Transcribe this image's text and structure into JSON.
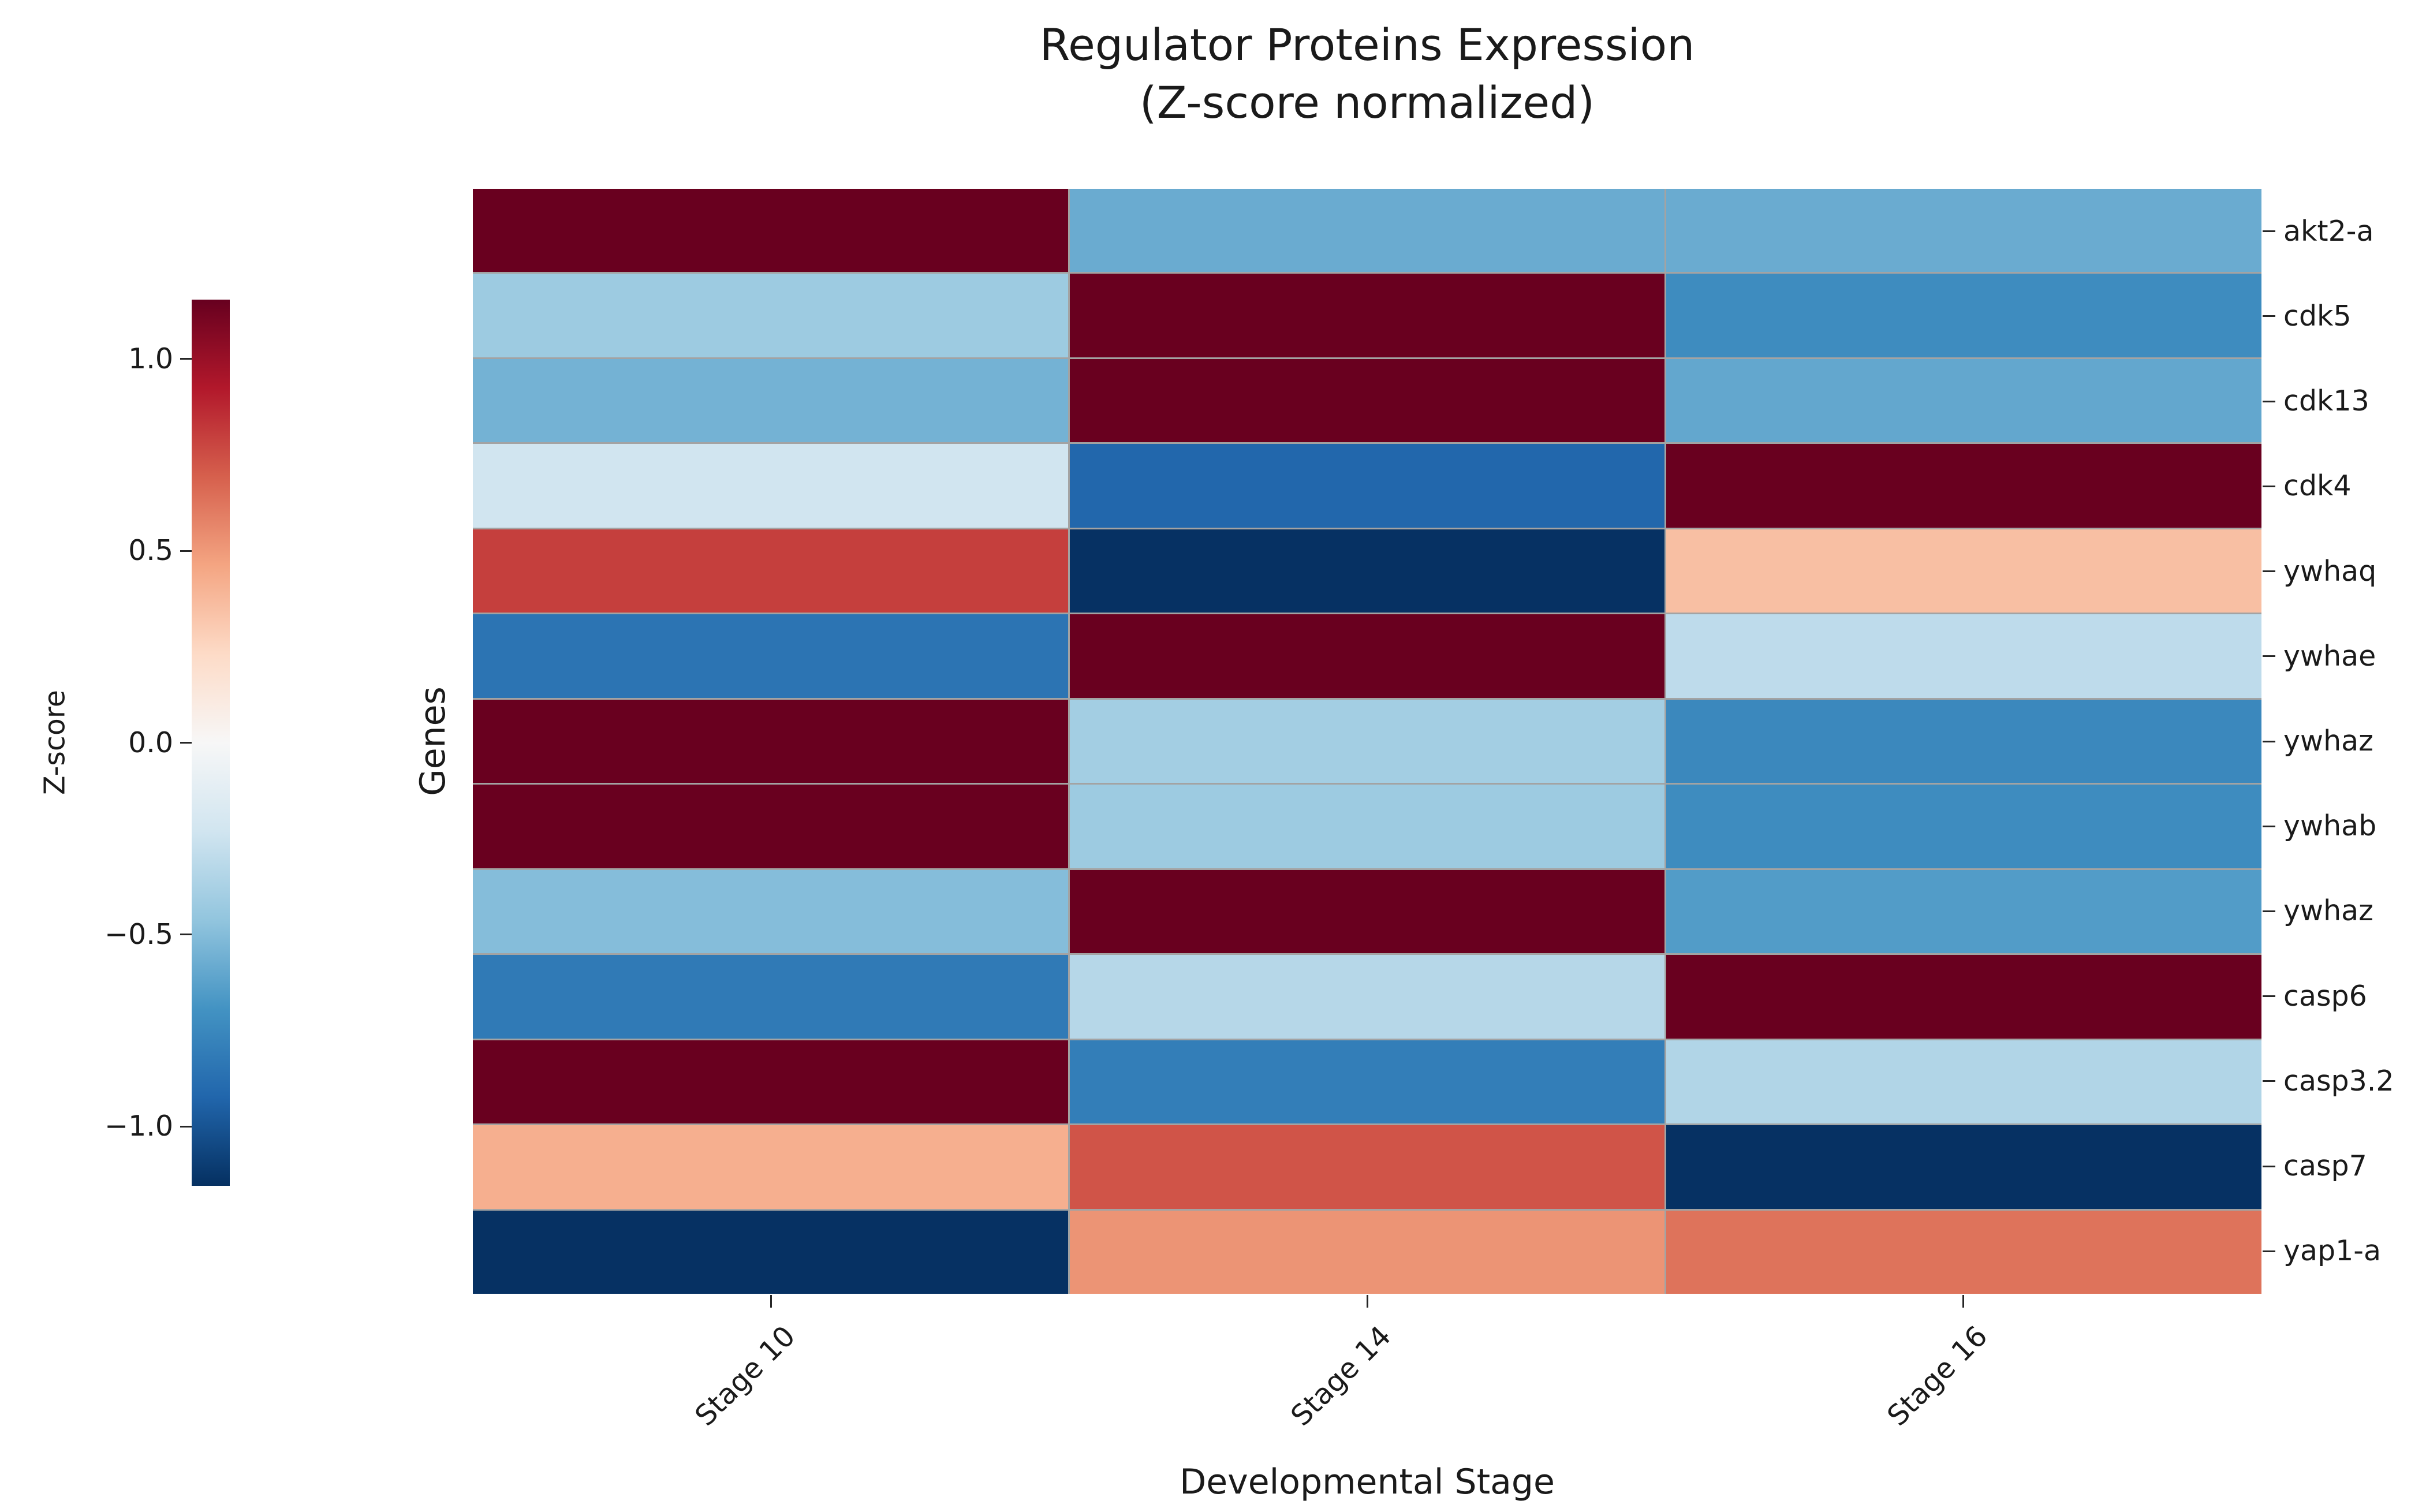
{
  "page": {
    "background": "#ffffff",
    "text_color": "#1a1a1a"
  },
  "chart_data": {
    "type": "heatmap",
    "title": "Regulator Proteins Expression",
    "subtitle": "(Z-score normalized)",
    "xlabel": "Developmental Stage",
    "ylabel": "Genes",
    "colorbar_label": "Z-score",
    "x_categories": [
      "Stage 10",
      "Stage 14",
      "Stage 16"
    ],
    "y_categories": [
      "akt2-a",
      "cdk5",
      "cdk13",
      "cdk4",
      "ywhaq",
      "ywhae",
      "ywhaz",
      "ywhab",
      "ywhaz",
      "casp6",
      "casp3.2",
      "casp7",
      "yap1-a"
    ],
    "values": [
      [
        1.15,
        -0.58,
        -0.58
      ],
      [
        -0.42,
        1.15,
        -0.73
      ],
      [
        -0.55,
        1.15,
        -0.6
      ],
      [
        -0.23,
        -0.92,
        1.15
      ],
      [
        0.8,
        -1.15,
        0.35
      ],
      [
        -0.85,
        1.15,
        -0.3
      ],
      [
        1.15,
        -0.4,
        -0.75
      ],
      [
        1.15,
        -0.42,
        -0.73
      ],
      [
        -0.5,
        1.15,
        -0.65
      ],
      [
        -0.82,
        -0.33,
        1.15
      ],
      [
        1.15,
        -0.8,
        -0.35
      ],
      [
        0.42,
        0.73,
        -1.15
      ],
      [
        -1.15,
        0.52,
        0.63
      ]
    ],
    "vmin": -1.1547,
    "vmax": 1.1547,
    "colorbar_position": "left",
    "grid_lines": true,
    "grid_line_color": "#a3a3a3",
    "colorbar_ticks": [
      {
        "v": 1.0,
        "label": "1.0"
      },
      {
        "v": 0.5,
        "label": "0.5"
      },
      {
        "v": 0.0,
        "label": "0.0"
      },
      {
        "v": -0.5,
        "label": "−0.5"
      },
      {
        "v": -1.0,
        "label": "−1.0"
      }
    ],
    "colormap_low_to_high": [
      "#053061",
      "#2166ac",
      "#4393c3",
      "#92c5de",
      "#d1e5f0",
      "#f7f7f7",
      "#fddbc7",
      "#f4a582",
      "#d6604d",
      "#b2182b",
      "#67001f"
    ]
  }
}
